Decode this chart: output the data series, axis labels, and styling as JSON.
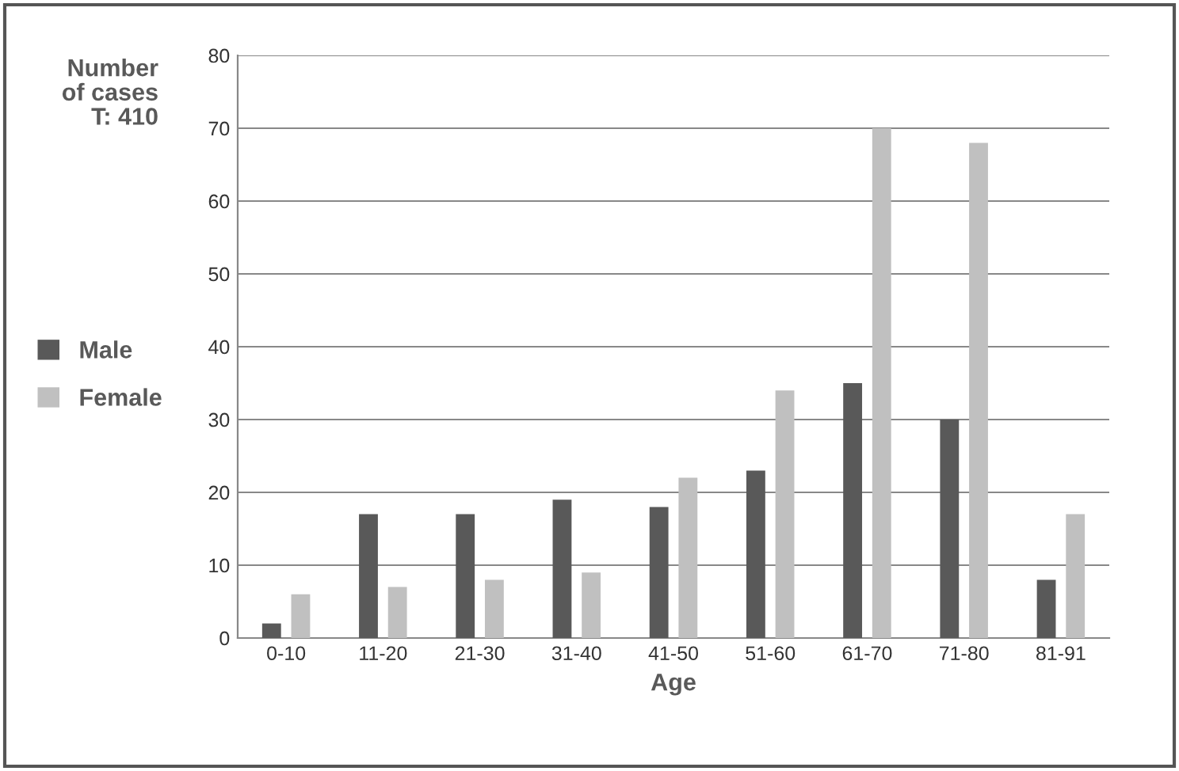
{
  "chart_data": {
    "type": "bar",
    "xlabel": "Age",
    "ylabel": "Number\nof cases\nT: 410",
    "categories": [
      "0-10",
      "11-20",
      "21-30",
      "31-40",
      "41-50",
      "51-60",
      "61-70",
      "71-80",
      "81-91"
    ],
    "series": [
      {
        "name": "Male",
        "color": "#595959",
        "values": [
          2,
          17,
          17,
          19,
          18,
          23,
          35,
          30,
          8
        ]
      },
      {
        "name": "Female",
        "color": "#c0c0c0",
        "values": [
          6,
          7,
          8,
          9,
          22,
          34,
          70,
          68,
          17
        ]
      }
    ],
    "ylim": [
      0,
      80
    ],
    "yticks": [
      0,
      10,
      20,
      30,
      40,
      50,
      60,
      70,
      80
    ],
    "grid": "y",
    "legend": "left"
  }
}
